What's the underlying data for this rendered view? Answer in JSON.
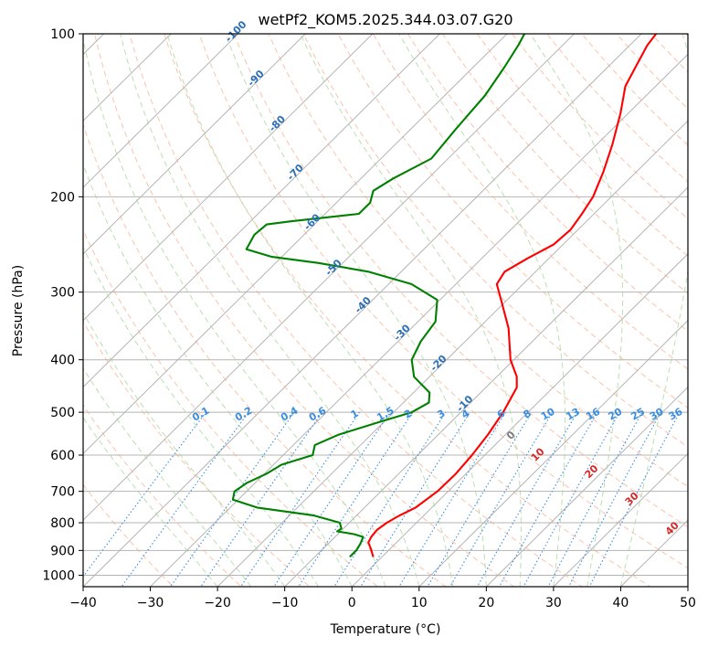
{
  "chart_data": {
    "type": "skew-t",
    "title": "wetPf2_KOM5.2025.344.03.07.G20",
    "xlabel": "Temperature (°C)",
    "ylabel": "Pressure (hPa)",
    "xlim": [
      -40,
      50
    ],
    "ylim": [
      1050,
      100
    ],
    "x_ticks": [
      -40,
      -30,
      -20,
      -10,
      0,
      10,
      20,
      30,
      40,
      50
    ],
    "x_tick_labels": [
      "−40",
      "−30",
      "−20",
      "−10",
      "0",
      "10",
      "20",
      "30",
      "40",
      "50"
    ],
    "p_ticks": [
      1000,
      900,
      800,
      700,
      600,
      500,
      400,
      300,
      200,
      100
    ],
    "p_tick_labels": [
      "1000",
      "900",
      "800",
      "700",
      "600",
      "500",
      "400",
      "300",
      "200",
      "100"
    ],
    "temperature_profile": {
      "name": "Temperature",
      "color": "#ff0000",
      "points": [
        {
          "p": 925,
          "t": -1.3
        },
        {
          "p": 895,
          "t": -2.8
        },
        {
          "p": 870,
          "t": -4.2
        },
        {
          "p": 850,
          "t": -4.6
        },
        {
          "p": 825,
          "t": -4.8
        },
        {
          "p": 800,
          "t": -4.4
        },
        {
          "p": 775,
          "t": -3.6
        },
        {
          "p": 750,
          "t": -2.4
        },
        {
          "p": 700,
          "t": -1.6
        },
        {
          "p": 650,
          "t": -1.5
        },
        {
          "p": 600,
          "t": -1.9
        },
        {
          "p": 550,
          "t": -2.6
        },
        {
          "p": 500,
          "t": -3.7
        },
        {
          "p": 450,
          "t": -5.4
        },
        {
          "p": 430,
          "t": -7.0
        },
        {
          "p": 400,
          "t": -10.5
        },
        {
          "p": 350,
          "t": -15.5
        },
        {
          "p": 310,
          "t": -20.9
        },
        {
          "p": 290,
          "t": -23.9
        },
        {
          "p": 275,
          "t": -24.6
        },
        {
          "p": 260,
          "t": -23.2
        },
        {
          "p": 245,
          "t": -21.4
        },
        {
          "p": 230,
          "t": -21.1
        },
        {
          "p": 215,
          "t": -21.8
        },
        {
          "p": 200,
          "t": -22.7
        },
        {
          "p": 180,
          "t": -24.9
        },
        {
          "p": 160,
          "t": -27.7
        },
        {
          "p": 140,
          "t": -31.2
        },
        {
          "p": 125,
          "t": -34.5
        },
        {
          "p": 115,
          "t": -35.9
        },
        {
          "p": 105,
          "t": -37.4
        },
        {
          "p": 100,
          "t": -37.8
        }
      ]
    },
    "dewpoint_profile": {
      "name": "Dewpoint",
      "color": "#008000",
      "points": [
        {
          "p": 925,
          "t": -4.8
        },
        {
          "p": 900,
          "t": -4.8
        },
        {
          "p": 875,
          "t": -5.2
        },
        {
          "p": 850,
          "t": -5.8
        },
        {
          "p": 840,
          "t": -7.5
        },
        {
          "p": 830,
          "t": -10.5
        },
        {
          "p": 820,
          "t": -10.3
        },
        {
          "p": 800,
          "t": -11.4
        },
        {
          "p": 775,
          "t": -16.5
        },
        {
          "p": 750,
          "t": -26.0
        },
        {
          "p": 725,
          "t": -30.8
        },
        {
          "p": 700,
          "t": -31.8
        },
        {
          "p": 675,
          "t": -31.2
        },
        {
          "p": 650,
          "t": -29.7
        },
        {
          "p": 625,
          "t": -28.8
        },
        {
          "p": 600,
          "t": -25.6
        },
        {
          "p": 575,
          "t": -26.8
        },
        {
          "p": 550,
          "t": -24.8
        },
        {
          "p": 520,
          "t": -20.5
        },
        {
          "p": 500,
          "t": -17.3
        },
        {
          "p": 480,
          "t": -16.2
        },
        {
          "p": 460,
          "t": -17.6
        },
        {
          "p": 430,
          "t": -22.3
        },
        {
          "p": 400,
          "t": -25.2
        },
        {
          "p": 370,
          "t": -26.6
        },
        {
          "p": 340,
          "t": -27.4
        },
        {
          "p": 310,
          "t": -30.4
        },
        {
          "p": 290,
          "t": -36.6
        },
        {
          "p": 275,
          "t": -44.9
        },
        {
          "p": 265,
          "t": -53.6
        },
        {
          "p": 258,
          "t": -61.6
        },
        {
          "p": 250,
          "t": -66.4
        },
        {
          "p": 235,
          "t": -67.4
        },
        {
          "p": 225,
          "t": -67.1
        },
        {
          "p": 222,
          "t": -64.0
        },
        {
          "p": 215,
          "t": -55.0
        },
        {
          "p": 205,
          "t": -55.0
        },
        {
          "p": 195,
          "t": -56.3
        },
        {
          "p": 185,
          "t": -55.2
        },
        {
          "p": 170,
          "t": -52.5
        },
        {
          "p": 150,
          "t": -53.3
        },
        {
          "p": 130,
          "t": -54.0
        },
        {
          "p": 115,
          "t": -55.4
        },
        {
          "p": 105,
          "t": -56.6
        },
        {
          "p": 100,
          "t": -57.4
        }
      ]
    },
    "reference_lines": {
      "isotherms_c": [
        -100,
        -90,
        -80,
        -70,
        -60,
        -50,
        -40,
        -30,
        -20,
        -10,
        0,
        10,
        20,
        30,
        40,
        50
      ],
      "isotherm_labels": [
        {
          "text": "-100",
          "p": 100
        },
        {
          "text": "-90",
          "p": 122
        },
        {
          "text": "-80",
          "p": 148
        },
        {
          "text": "-70",
          "p": 182
        },
        {
          "text": "-60",
          "p": 225
        },
        {
          "text": "-50",
          "p": 273
        },
        {
          "text": "-40",
          "p": 320
        },
        {
          "text": "-30",
          "p": 360
        },
        {
          "text": "-20",
          "p": 410
        },
        {
          "text": "-10",
          "p": 487
        }
      ],
      "mixing_ratios_gkg": [
        "0.1",
        "0.2",
        "0.4",
        "0.6",
        "1",
        "1.5",
        "2",
        "3",
        "4",
        "6",
        "8",
        "10",
        "13",
        "16",
        "20",
        "25",
        "30",
        "36"
      ],
      "theta_e_labels": [
        "0",
        "10",
        "20",
        "30",
        "40"
      ]
    }
  }
}
